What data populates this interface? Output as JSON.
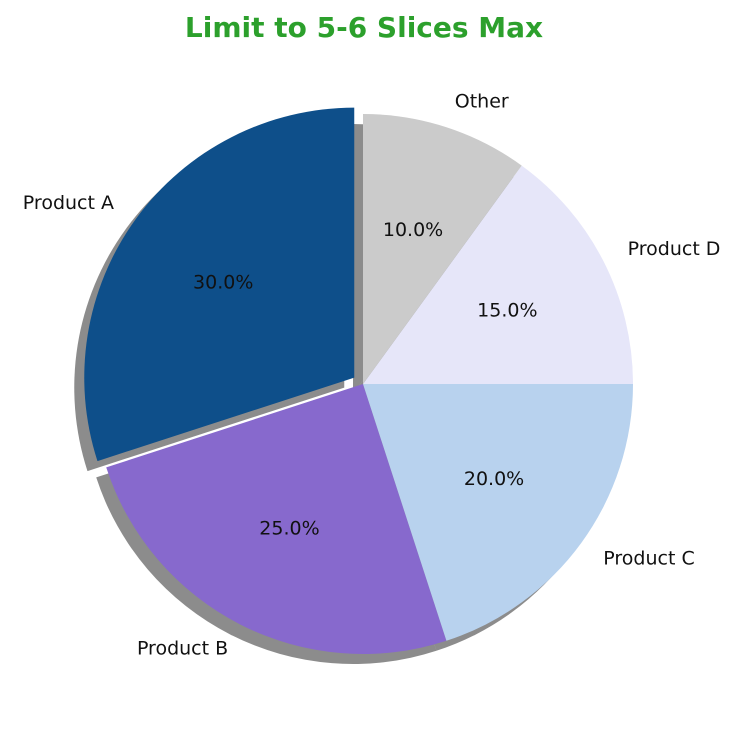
{
  "chart_data": {
    "type": "pie",
    "title": "Limit to 5-6 Slices Max",
    "title_color": "#2ca02c",
    "slices": [
      {
        "label": "Product A",
        "value": 30,
        "pct_label": "30.0%",
        "color": "#0e4f8a",
        "exploded": true
      },
      {
        "label": "Product B",
        "value": 25,
        "pct_label": "25.0%",
        "color": "#8769cd",
        "exploded": false
      },
      {
        "label": "Product C",
        "value": 20,
        "pct_label": "20.0%",
        "color": "#b8d2ee",
        "exploded": false
      },
      {
        "label": "Product D",
        "value": 15,
        "pct_label": "15.0%",
        "color": "#e6e6f9",
        "exploded": false
      },
      {
        "label": "Other",
        "value": 10,
        "pct_label": "10.0%",
        "color": "#cbcbcb",
        "exploded": false
      }
    ],
    "start_angle_deg": 90,
    "direction": "counterclockwise",
    "shadow": true
  }
}
